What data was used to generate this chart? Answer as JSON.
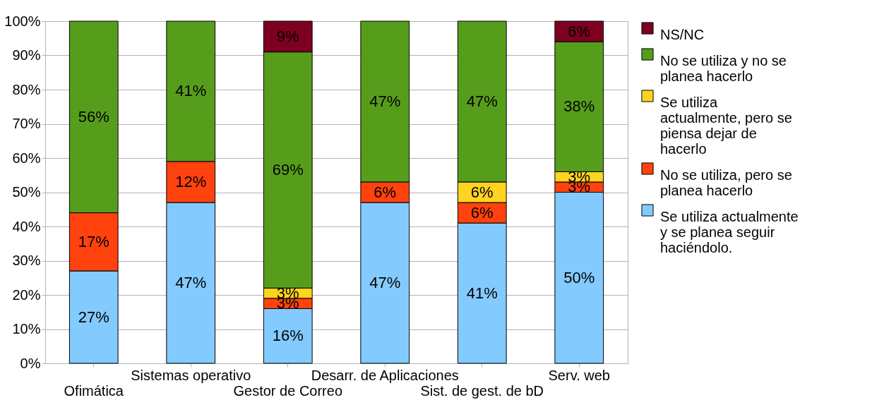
{
  "chart_data": {
    "type": "bar",
    "stacked": true,
    "categories": [
      "Ofimática",
      "Sistemas operativo",
      "Gestor de Correo",
      "Desarr. de Aplicaciones",
      "Sist. de gest. de bD",
      "Serv. web"
    ],
    "series": [
      {
        "name": "Se utiliza actualmente y se planea seguir haciéndolo.",
        "color": "#83caff",
        "values": [
          27,
          47,
          16,
          47,
          41,
          50
        ],
        "value_labels": [
          "27%",
          "47%",
          "16%",
          "47%",
          "41%",
          "50%"
        ]
      },
      {
        "name": "No se utiliza, pero se planea hacerlo",
        "color": "#ff420e",
        "values": [
          17,
          12,
          3,
          6,
          6,
          3
        ],
        "value_labels": [
          "17%",
          "12%",
          "3%",
          "6%",
          "6%",
          "3%"
        ]
      },
      {
        "name": "Se utiliza actualmente, pero se piensa dejar de hacerlo",
        "color": "#ffd320",
        "values": [
          null,
          null,
          3,
          null,
          6,
          3
        ],
        "value_labels": [
          null,
          null,
          "3%",
          null,
          "6%",
          "3%"
        ]
      },
      {
        "name": "No se utiliza y no se planea hacerlo",
        "color": "#579d1c",
        "values": [
          56,
          41,
          69,
          47,
          47,
          38
        ],
        "value_labels": [
          "56%",
          "41%",
          "69%",
          "47%",
          "47%",
          "38%"
        ]
      },
      {
        "name": "NS/NC",
        "color": "#7e0021",
        "values": [
          null,
          null,
          9,
          null,
          null,
          6
        ],
        "value_labels": [
          null,
          null,
          "9%",
          null,
          null,
          "6%"
        ]
      }
    ],
    "ylim": [
      0,
      100
    ],
    "yticks": [
      {
        "value": 0,
        "label": "0%"
      },
      {
        "value": 10,
        "label": "10%"
      },
      {
        "value": 20,
        "label": "20%"
      },
      {
        "value": 30,
        "label": "30%"
      },
      {
        "value": 40,
        "label": "40%"
      },
      {
        "value": 50,
        "label": "50%"
      },
      {
        "value": 60,
        "label": "60%"
      },
      {
        "value": 70,
        "label": "70%"
      },
      {
        "value": 80,
        "label": "80%"
      },
      {
        "value": 90,
        "label": "90%"
      },
      {
        "value": 100,
        "label": "100%"
      }
    ],
    "grid": "y",
    "legend": "right"
  }
}
